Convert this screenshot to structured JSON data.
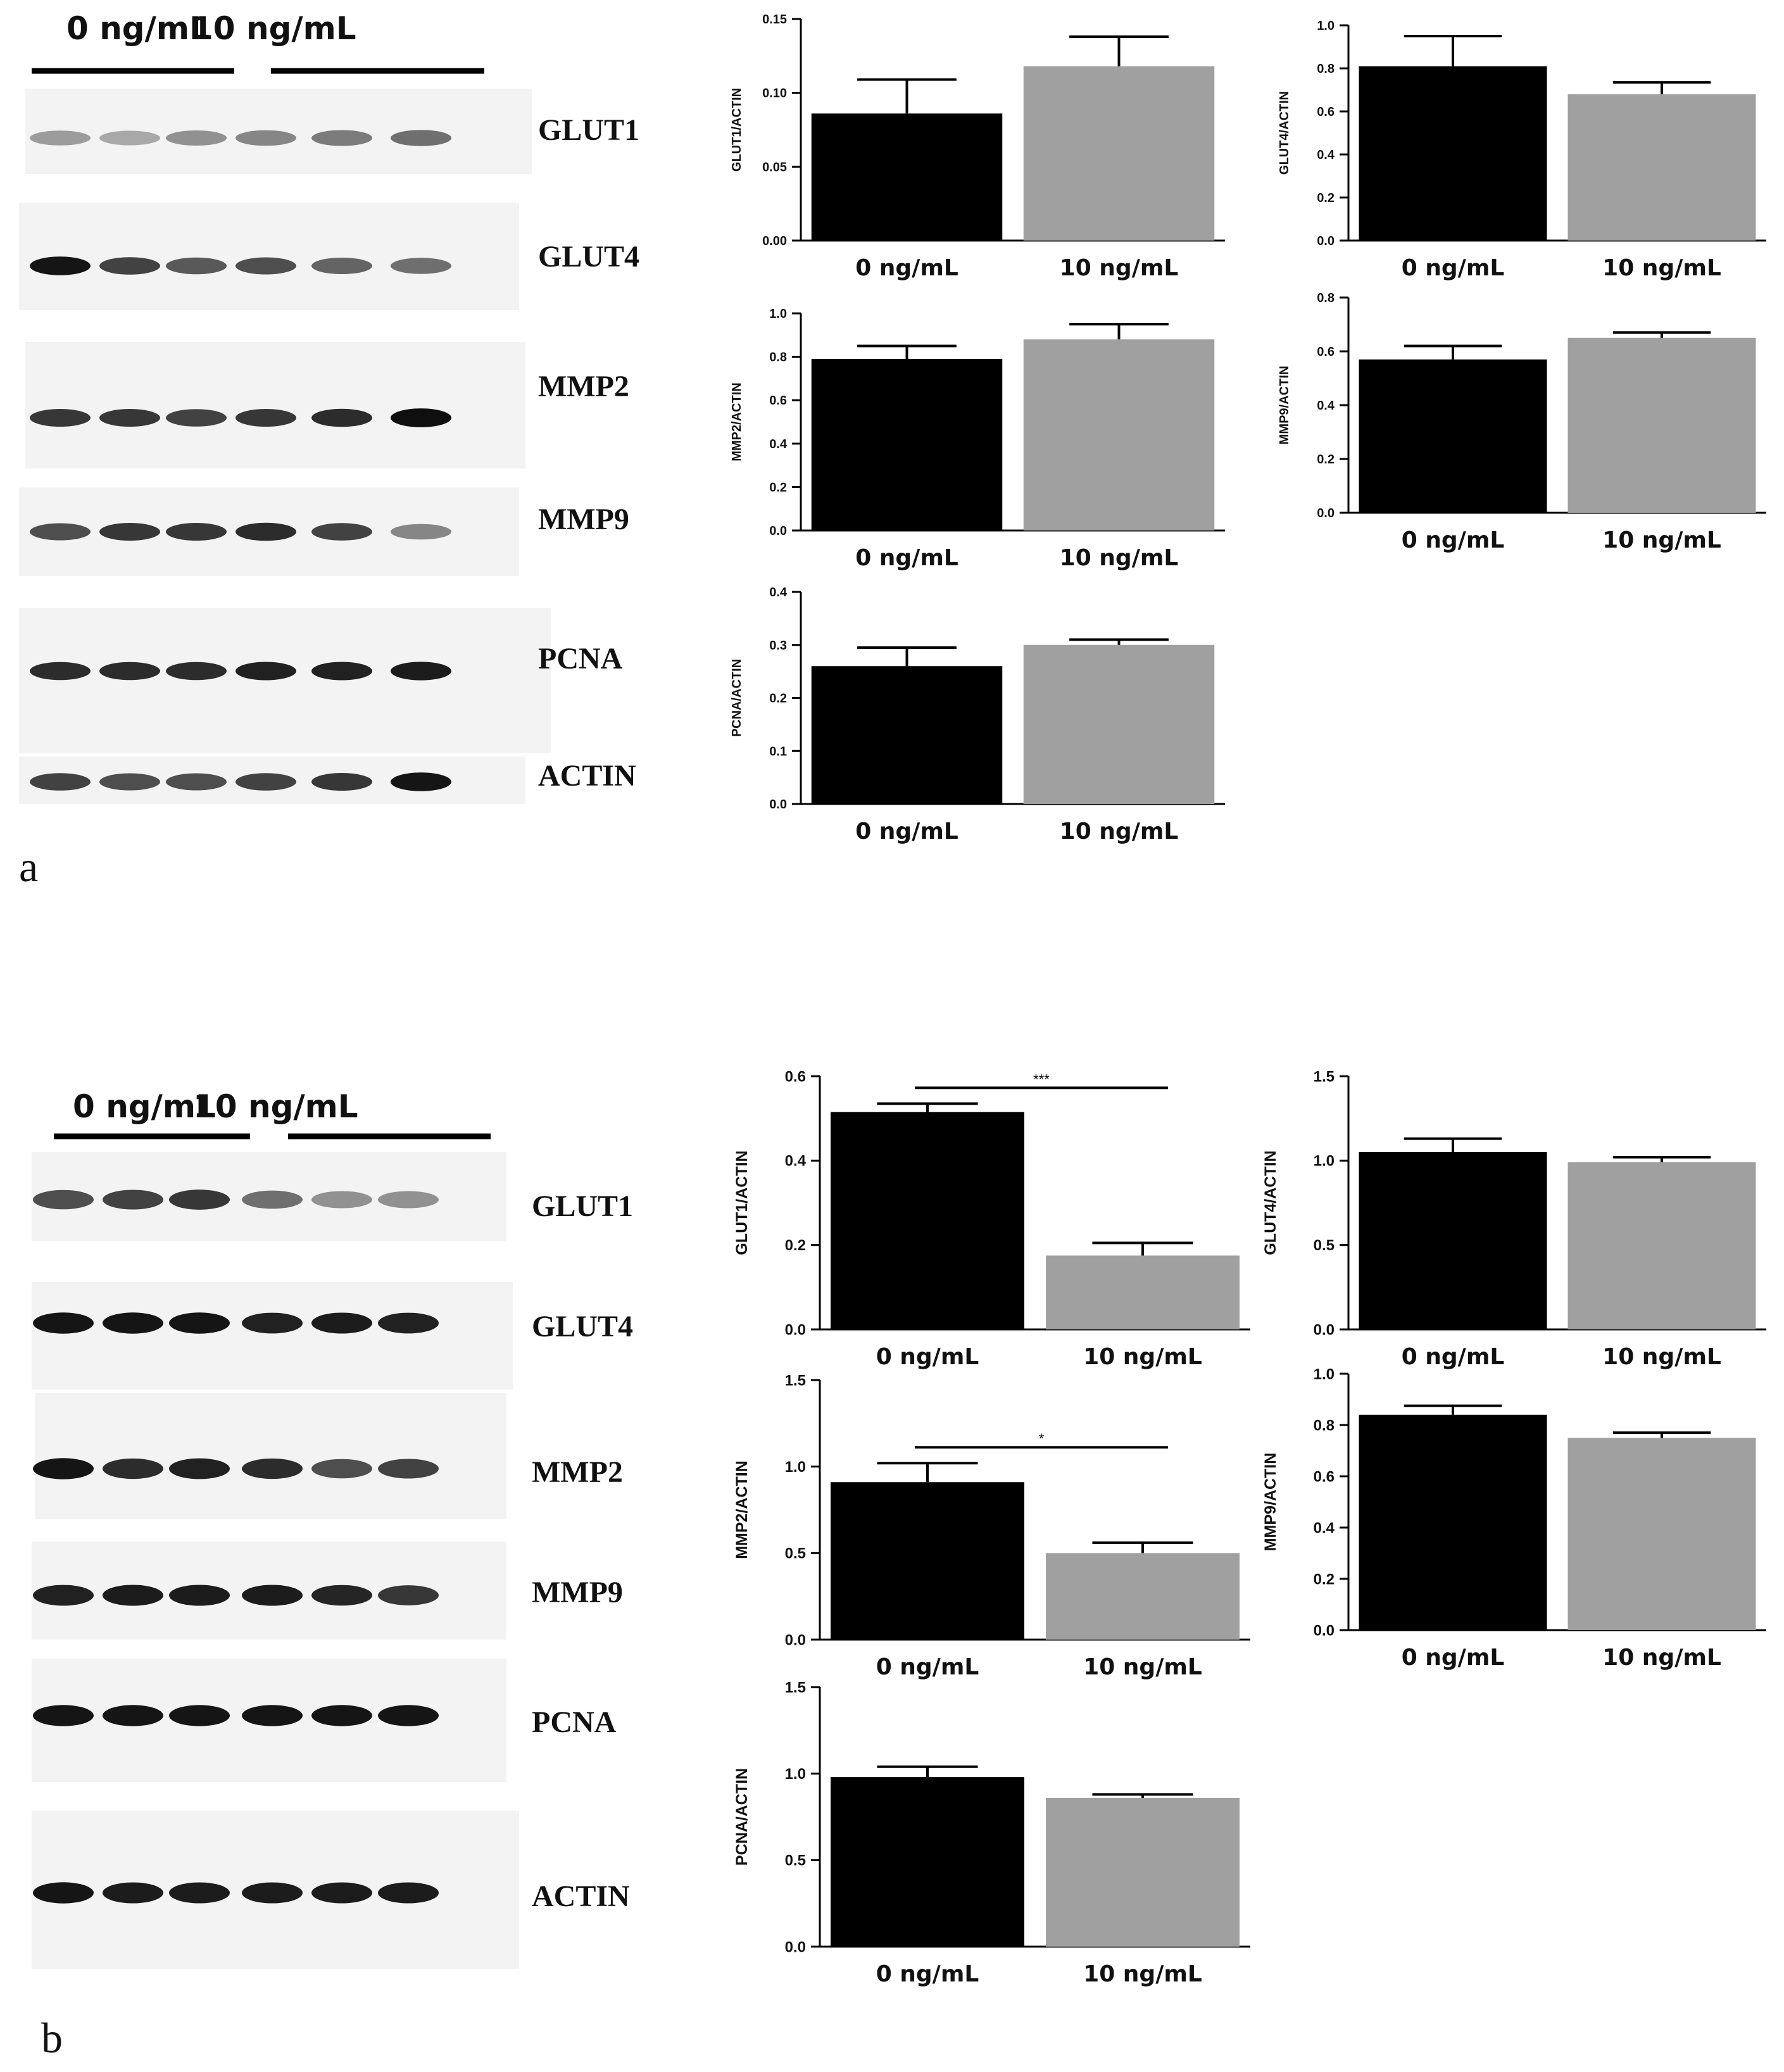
{
  "panels": [
    {
      "letter": "a",
      "blot": {
        "group_labels": [
          "0 ng/mL",
          "10 ng/mL"
        ],
        "proteins": [
          "GLUT1",
          "GLUT4",
          "MMP2",
          "MMP9",
          "PCNA",
          "ACTIN"
        ],
        "band_intensity": [
          [
            0.35,
            0.3,
            0.4,
            0.45,
            0.5,
            0.55
          ],
          [
            0.95,
            0.75,
            0.65,
            0.7,
            0.6,
            0.55
          ],
          [
            0.8,
            0.8,
            0.75,
            0.8,
            0.85,
            0.98
          ],
          [
            0.7,
            0.8,
            0.8,
            0.85,
            0.75,
            0.45
          ],
          [
            0.85,
            0.85,
            0.85,
            0.9,
            0.9,
            0.92
          ],
          [
            0.75,
            0.7,
            0.7,
            0.75,
            0.8,
            0.95
          ]
        ]
      }
    },
    {
      "letter": "b",
      "blot": {
        "group_labels": [
          "0 ng/mL",
          "10 ng/mL"
        ],
        "proteins": [
          "GLUT1",
          "GLUT4",
          "MMP2",
          "MMP9",
          "PCNA",
          "ACTIN"
        ],
        "band_intensity": [
          [
            0.7,
            0.75,
            0.8,
            0.55,
            0.4,
            0.4
          ],
          [
            0.95,
            0.95,
            0.95,
            0.9,
            0.92,
            0.9
          ],
          [
            0.95,
            0.85,
            0.9,
            0.85,
            0.7,
            0.75
          ],
          [
            0.9,
            0.92,
            0.92,
            0.92,
            0.88,
            0.8
          ],
          [
            0.95,
            0.95,
            0.95,
            0.95,
            0.95,
            0.95
          ],
          [
            0.95,
            0.92,
            0.92,
            0.92,
            0.92,
            0.92
          ]
        ]
      }
    }
  ],
  "chart_data": [
    {
      "type": "bar",
      "panel": "a",
      "categories": [
        "0 ng/mL",
        "10 ng/mL"
      ],
      "values": [
        0.086,
        0.118
      ],
      "errors": [
        0.023,
        0.02
      ],
      "ylabel": "GLUT1/ACTIN",
      "ylim": [
        0,
        0.15
      ],
      "yticks": [
        "0.00",
        "0.05",
        "0.10",
        "0.15"
      ],
      "colors": [
        "#000000",
        "#a0a0a0"
      ],
      "significance": ""
    },
    {
      "type": "bar",
      "panel": "a",
      "categories": [
        "0 ng/mL",
        "10 ng/mL"
      ],
      "values": [
        0.81,
        0.68
      ],
      "errors": [
        0.14,
        0.055
      ],
      "ylabel": "GLUT4/ACTIN",
      "ylim": [
        0,
        1.0
      ],
      "yticks": [
        "0.0",
        "0.2",
        "0.4",
        "0.6",
        "0.8",
        "1.0"
      ],
      "colors": [
        "#000000",
        "#a0a0a0"
      ],
      "significance": ""
    },
    {
      "type": "bar",
      "panel": "a",
      "categories": [
        "0 ng/mL",
        "10 ng/mL"
      ],
      "values": [
        0.79,
        0.88
      ],
      "errors": [
        0.06,
        0.07
      ],
      "ylabel": "MMP2/ACTIN",
      "ylim": [
        0,
        1.0
      ],
      "yticks": [
        "0.0",
        "0.2",
        "0.4",
        "0.6",
        "0.8",
        "1.0"
      ],
      "colors": [
        "#000000",
        "#a0a0a0"
      ],
      "significance": ""
    },
    {
      "type": "bar",
      "panel": "a",
      "categories": [
        "0 ng/mL",
        "10 ng/mL"
      ],
      "values": [
        0.57,
        0.65
      ],
      "errors": [
        0.05,
        0.02
      ],
      "ylabel": "MMP9/ACTIN",
      "ylim": [
        0,
        0.8
      ],
      "yticks": [
        "0.0",
        "0.2",
        "0.4",
        "0.6",
        "0.8"
      ],
      "colors": [
        "#000000",
        "#a0a0a0"
      ],
      "significance": ""
    },
    {
      "type": "bar",
      "panel": "a",
      "categories": [
        "0 ng/mL",
        "10 ng/mL"
      ],
      "values": [
        0.26,
        0.3
      ],
      "errors": [
        0.035,
        0.01
      ],
      "ylabel": "PCNA/ACTIN",
      "ylim": [
        0,
        0.4
      ],
      "yticks": [
        "0.0",
        "0.1",
        "0.2",
        "0.3",
        "0.4"
      ],
      "colors": [
        "#000000",
        "#a0a0a0"
      ],
      "significance": ""
    },
    {
      "type": "bar",
      "panel": "b",
      "categories": [
        "0 ng/mL",
        "10 ng/mL"
      ],
      "values": [
        0.515,
        0.175
      ],
      "errors": [
        0.02,
        0.03
      ],
      "ylabel": "GLUT1/ACTIN",
      "ylim": [
        0,
        0.6
      ],
      "yticks": [
        "0.0",
        "0.2",
        "0.4",
        "0.6"
      ],
      "colors": [
        "#000000",
        "#a0a0a0"
      ],
      "significance": "***"
    },
    {
      "type": "bar",
      "panel": "b",
      "categories": [
        "0 ng/mL",
        "10 ng/mL"
      ],
      "values": [
        1.05,
        0.99
      ],
      "errors": [
        0.08,
        0.03
      ],
      "ylabel": "GLUT4/ACTIN",
      "ylim": [
        0,
        1.5
      ],
      "yticks": [
        "0.0",
        "0.5",
        "1.0",
        "1.5"
      ],
      "colors": [
        "#000000",
        "#a0a0a0"
      ],
      "significance": ""
    },
    {
      "type": "bar",
      "panel": "b",
      "categories": [
        "0 ng/mL",
        "10 ng/mL"
      ],
      "values": [
        0.91,
        0.5
      ],
      "errors": [
        0.11,
        0.06
      ],
      "ylabel": "MMP2/ACTIN",
      "ylim": [
        0,
        1.5
      ],
      "yticks": [
        "0.0",
        "0.5",
        "1.0",
        "1.5"
      ],
      "colors": [
        "#000000",
        "#a0a0a0"
      ],
      "significance": "*"
    },
    {
      "type": "bar",
      "panel": "b",
      "categories": [
        "0 ng/mL",
        "10 ng/mL"
      ],
      "values": [
        0.84,
        0.75
      ],
      "errors": [
        0.035,
        0.02
      ],
      "ylabel": "MMP9/ACTIN",
      "ylim": [
        0,
        1.0
      ],
      "yticks": [
        "0.0",
        "0.2",
        "0.4",
        "0.6",
        "0.8",
        "1.0"
      ],
      "colors": [
        "#000000",
        "#a0a0a0"
      ],
      "significance": ""
    },
    {
      "type": "bar",
      "panel": "b",
      "categories": [
        "0 ng/mL",
        "10 ng/mL"
      ],
      "values": [
        0.98,
        0.86
      ],
      "errors": [
        0.06,
        0.02
      ],
      "ylabel": "PCNA/ACTIN",
      "ylim": [
        0,
        1.5
      ],
      "yticks": [
        "0.0",
        "0.5",
        "1.0",
        "1.5"
      ],
      "colors": [
        "#000000",
        "#a0a0a0"
      ],
      "significance": ""
    }
  ]
}
